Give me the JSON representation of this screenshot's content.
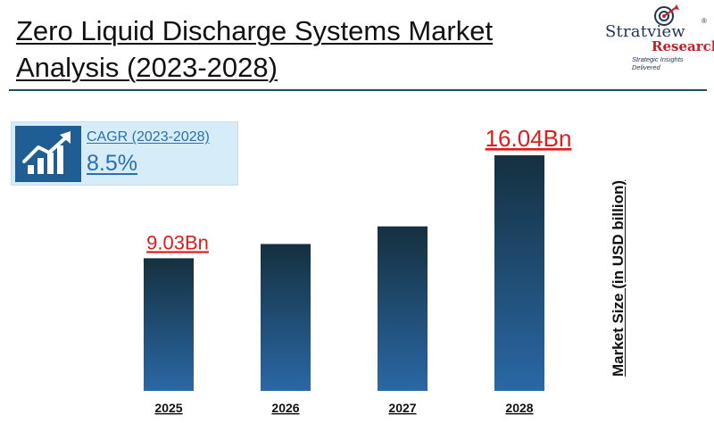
{
  "header": {
    "title": "Zero Liquid Discharge Systems Market Analysis (2023-2028)"
  },
  "brand": {
    "name": "Stratview",
    "sub": "Research",
    "tagline": "Strategic Insights Delivered",
    "reg": "®",
    "icon": "target-arrow-logo-icon"
  },
  "cagr": {
    "label": "CAGR (2023-2028)",
    "value": "8.5%",
    "icon": "growth-chart-icon"
  },
  "colors": {
    "bar_top": "#15303f",
    "bar_bottom": "#2a68a5",
    "label_highlight": "#e01b1b",
    "accent": "#1f5e95"
  },
  "chart_data": {
    "type": "bar",
    "categories": [
      "2025",
      "2026",
      "2027",
      "2028"
    ],
    "values": [
      9.03,
      10.0,
      11.2,
      16.04
    ],
    "data_labels": [
      "9.03Bn",
      "",
      "",
      "16.04Bn"
    ],
    "ylabel": "Market Size (in USD billion)",
    "xlabel": "",
    "ylim": [
      0,
      17.5
    ],
    "grid": false,
    "legend": "none"
  }
}
